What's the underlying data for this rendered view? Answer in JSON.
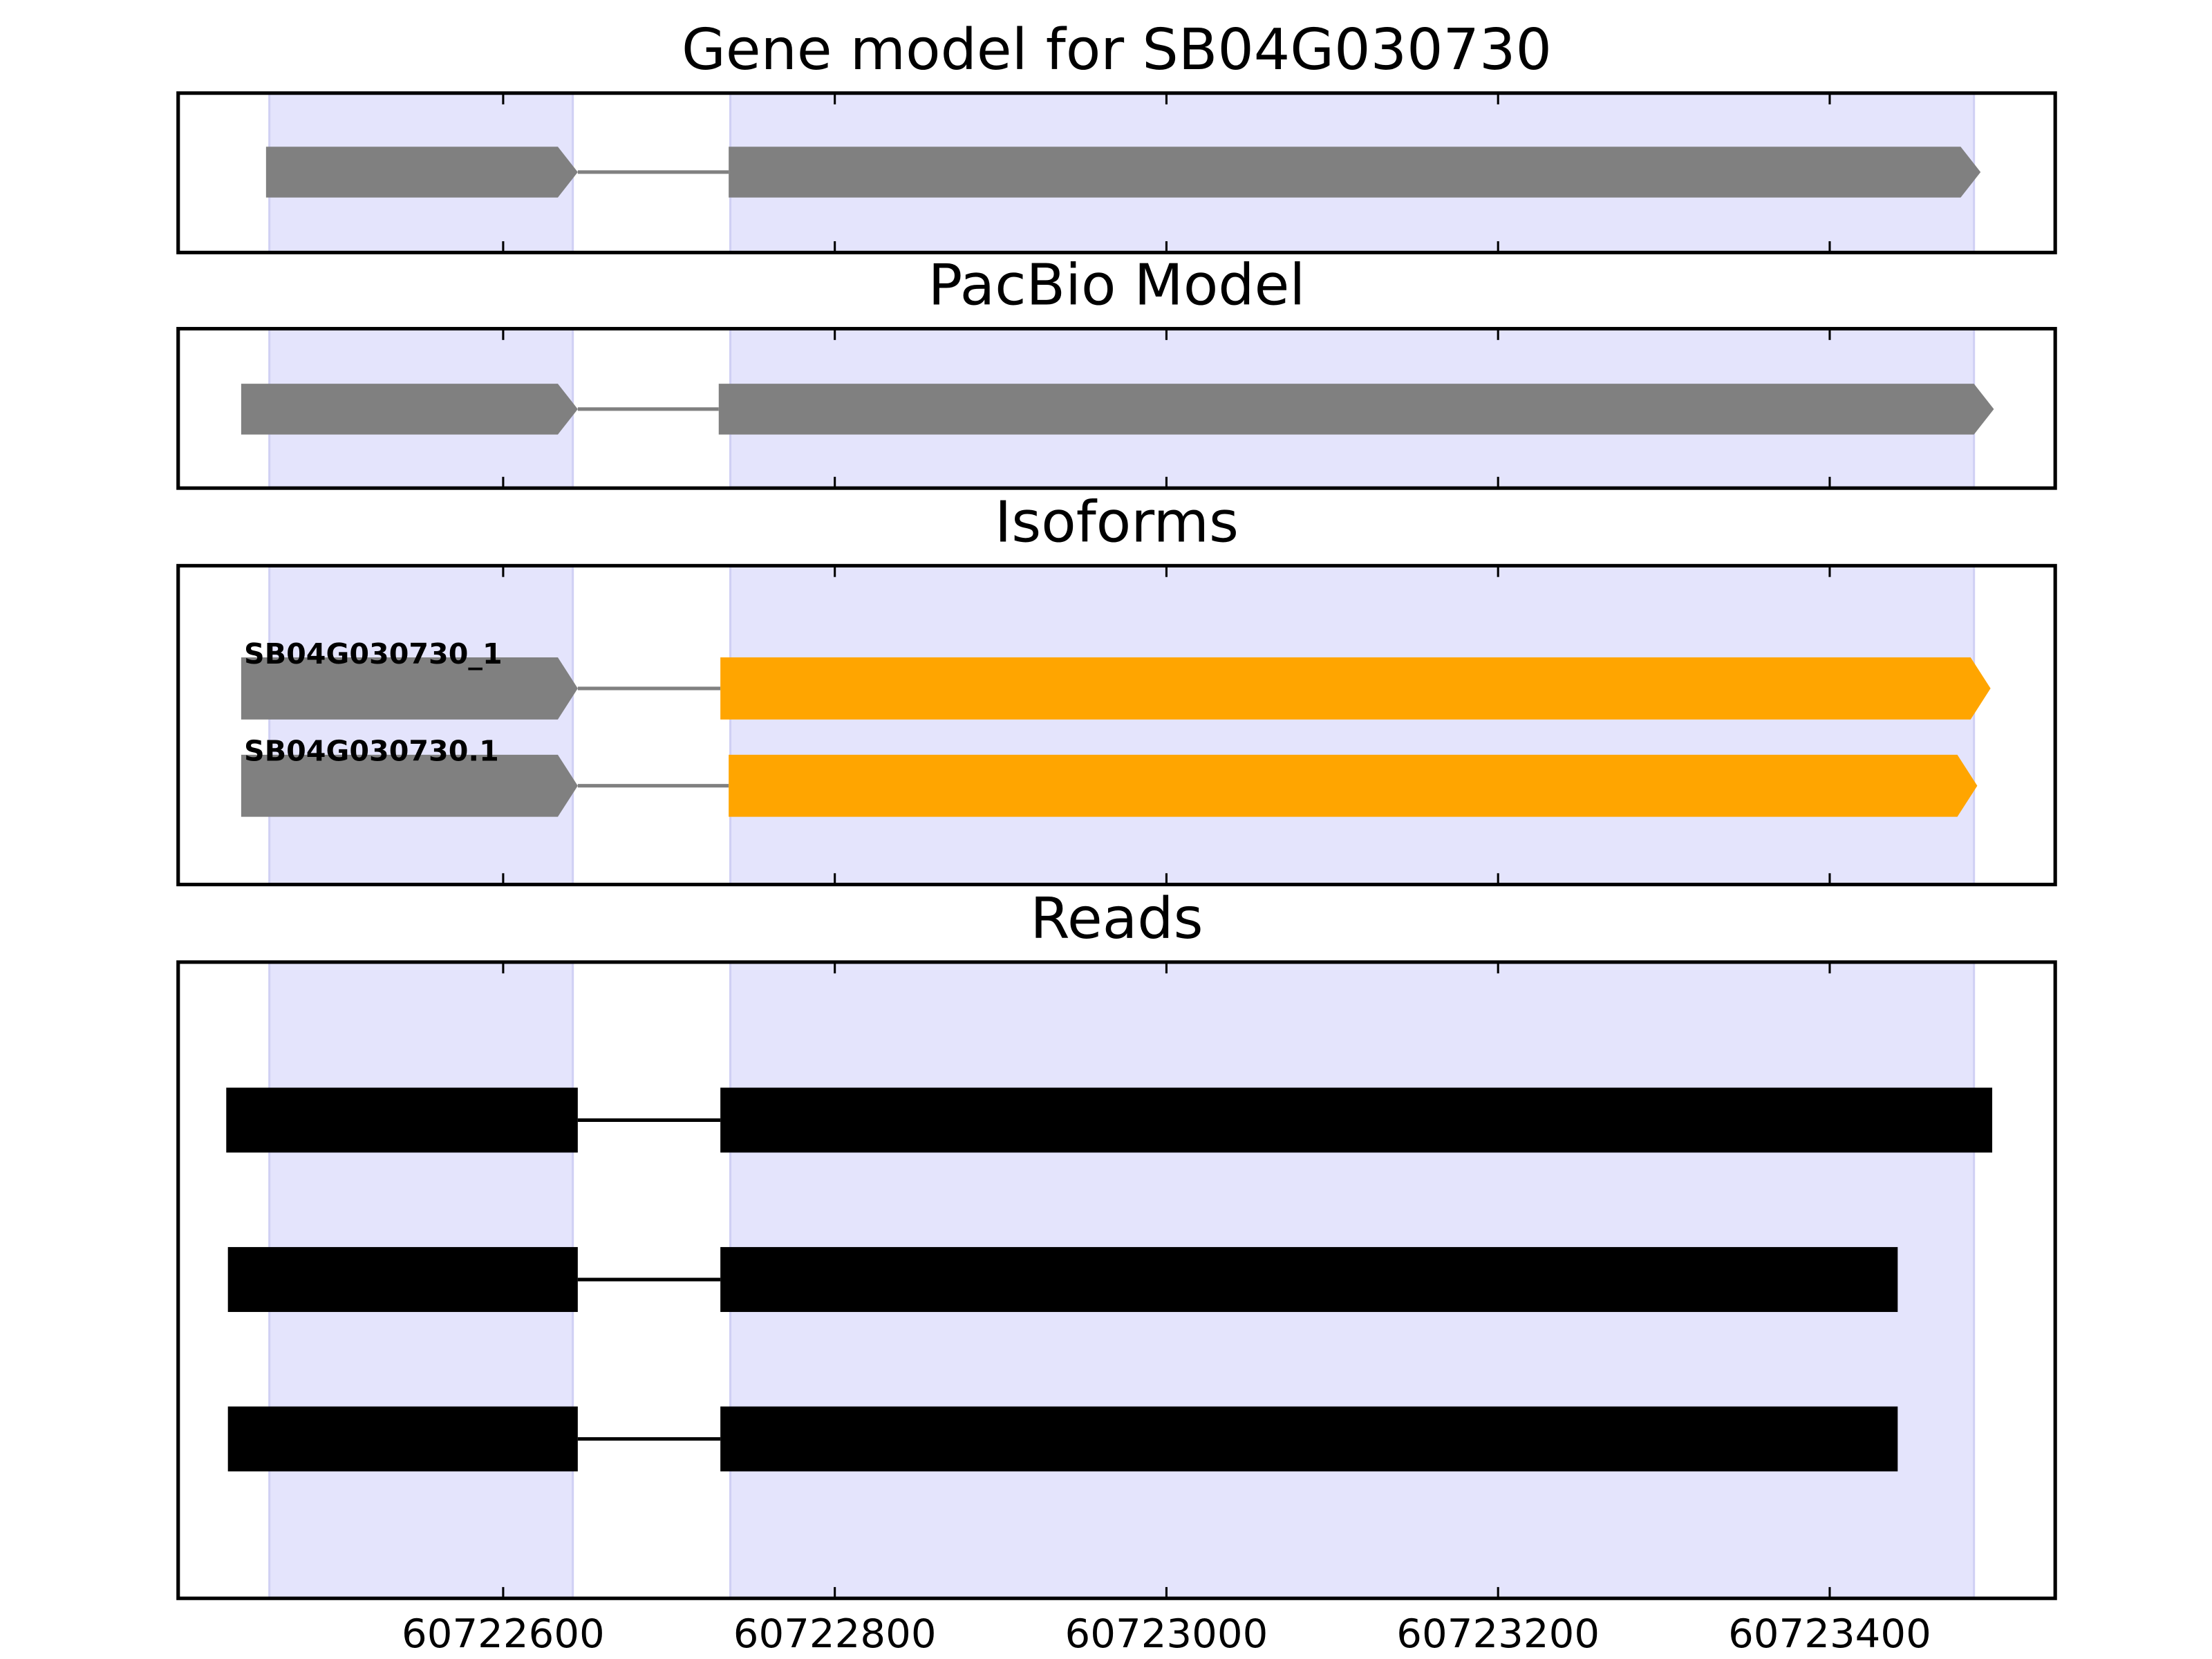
{
  "chart_data": {
    "type": "gene-model",
    "xlim": [
      60722404,
      60723536
    ],
    "xticks": [
      60722600,
      60722800,
      60723000,
      60723200,
      60723400
    ],
    "exon_regions": [
      [
        60722459,
        60722642
      ],
      [
        60722737,
        60723487
      ]
    ],
    "region_color": "#e4e4fc",
    "panels": [
      {
        "title": "Gene model for SB04G030730",
        "tracks": [
          {
            "arrow": true,
            "intron_color": "#808080",
            "exons": [
              {
                "start": 60722457,
                "end": 60722645,
                "color": "#808080"
              },
              {
                "start": 60722736,
                "end": 60723491,
                "color": "#808080"
              }
            ]
          }
        ]
      },
      {
        "title": "PacBio Model",
        "tracks": [
          {
            "arrow": true,
            "intron_color": "#808080",
            "exons": [
              {
                "start": 60722442,
                "end": 60722645,
                "color": "#808080"
              },
              {
                "start": 60722730,
                "end": 60723499,
                "color": "#808080"
              }
            ]
          }
        ]
      },
      {
        "title": "Isoforms",
        "tracks": [
          {
            "label": "SB04G030730_1",
            "arrow": true,
            "intron_color": "#808080",
            "exons": [
              {
                "start": 60722442,
                "end": 60722645,
                "color": "#808080"
              },
              {
                "start": 60722731,
                "end": 60723497,
                "color": "#ffa500"
              }
            ]
          },
          {
            "label": "SB04G030730.1",
            "arrow": true,
            "intron_color": "#808080",
            "exons": [
              {
                "start": 60722442,
                "end": 60722645,
                "color": "#808080"
              },
              {
                "start": 60722736,
                "end": 60723489,
                "color": "#ffa500"
              }
            ]
          }
        ]
      },
      {
        "title": "Reads",
        "tracks": [
          {
            "arrow": false,
            "intron_color": "#000000",
            "exons": [
              {
                "start": 60722433,
                "end": 60722645,
                "color": "#000000"
              },
              {
                "start": 60722731,
                "end": 60723498,
                "color": "#000000"
              }
            ]
          },
          {
            "arrow": false,
            "intron_color": "#000000",
            "exons": [
              {
                "start": 60722434,
                "end": 60722645,
                "color": "#000000"
              },
              {
                "start": 60722731,
                "end": 60723441,
                "color": "#000000"
              }
            ]
          },
          {
            "arrow": false,
            "intron_color": "#000000",
            "exons": [
              {
                "start": 60722434,
                "end": 60722645,
                "color": "#000000"
              },
              {
                "start": 60722731,
                "end": 60723441,
                "color": "#000000"
              }
            ]
          }
        ]
      }
    ]
  }
}
